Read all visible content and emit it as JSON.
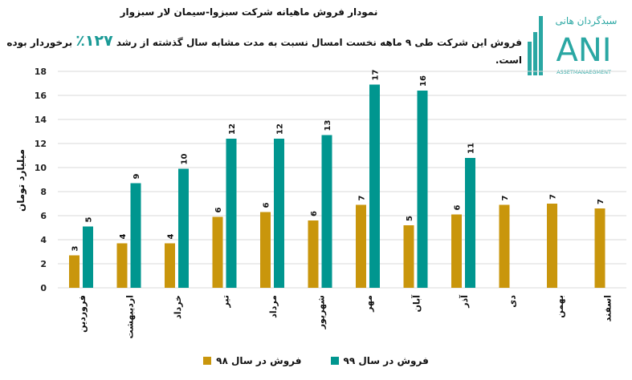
{
  "header": {
    "title": "نمودار فروش ماهیانه شرکت سبزوا-سیمان لار سبزوار",
    "subtitle_before": "فروش این شرکت طی ۹ ماهه نخست امسال نسبت به مدت مشابه سال گذشته از رشد",
    "subtitle_highlight": "۱۲۷٪",
    "subtitle_after": "برخوردار بوده است."
  },
  "logo": {
    "brand": "سبدگردان هانی",
    "letters": "ANI",
    "tagline": "ASSETMANAEGMENT"
  },
  "colors": {
    "s98": "#C9960C",
    "s99": "#00968F",
    "grid": "#d9d9d9",
    "accent": "#1a9a96"
  },
  "chart_data": {
    "type": "bar",
    "title": "نمودار فروش ماهیانه شرکت سبزوا-سیمان لار سبزوار",
    "ylabel": "میلیارد تومان",
    "xlabel": "",
    "ylim": [
      0,
      18
    ],
    "yticks": [
      0,
      2,
      4,
      6,
      8,
      10,
      12,
      14,
      16,
      18
    ],
    "grid": true,
    "legend_position": "bottom",
    "categories": [
      "فروردین",
      "اردیبهشت",
      "خرداد",
      "تیر",
      "مرداد",
      "شهریور",
      "مهر",
      "آبان",
      "آذر",
      "دی",
      "بهمن",
      "اسفند"
    ],
    "series": [
      {
        "name": "فروش در سال ۹۸",
        "values": [
          2.7,
          3.7,
          3.7,
          5.9,
          6.3,
          5.6,
          6.9,
          5.2,
          6.1,
          6.9,
          7.0,
          6.6
        ],
        "labels": [
          "3",
          "4",
          "4",
          "6",
          "6",
          "6",
          "7",
          "5",
          "6",
          "7",
          "7",
          "7"
        ]
      },
      {
        "name": "فروش در سال ۹۹",
        "values": [
          5.1,
          8.7,
          9.9,
          12.4,
          12.4,
          12.7,
          16.9,
          16.4,
          10.8,
          null,
          null,
          null
        ],
        "labels": [
          "5",
          "9",
          "10",
          "12",
          "12",
          "13",
          "17",
          "16",
          "11",
          null,
          null,
          null
        ]
      }
    ]
  }
}
